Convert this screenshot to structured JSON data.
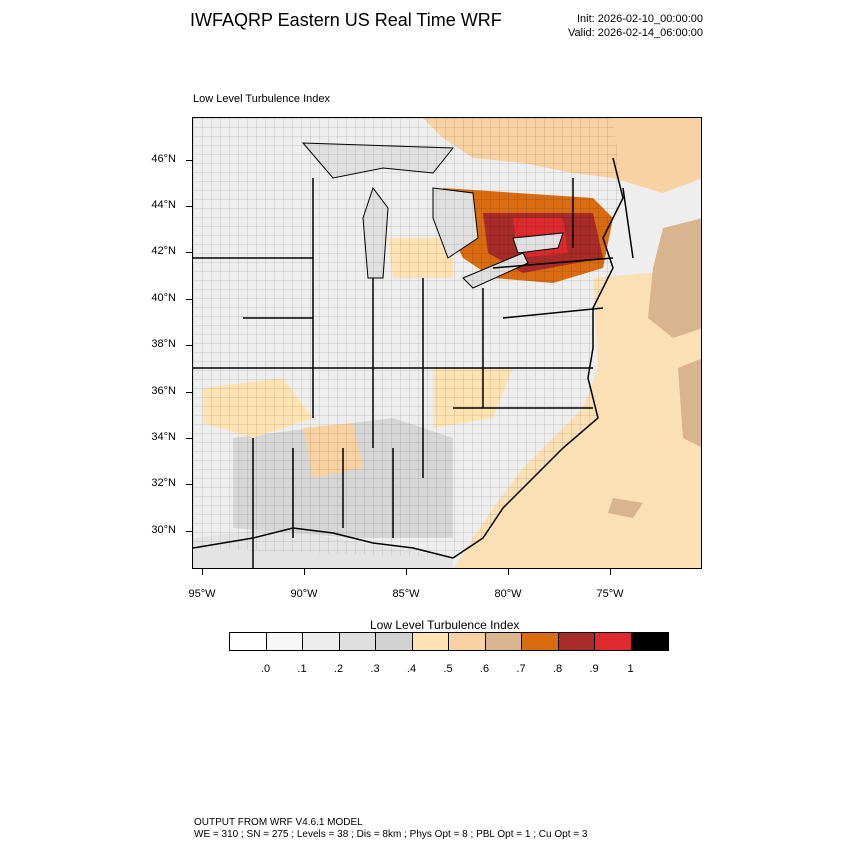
{
  "header": {
    "title": "IWFAQRP Eastern US Real Time WRF",
    "init": "Init: 2026-02-10_00:00:00",
    "valid": "Valid: 2026-02-14_06:00:00"
  },
  "map": {
    "subtitle": "Low Level Turbulence Index",
    "field": "low-level turbulence index",
    "lat_labels": [
      "46°N",
      "44°N",
      "42°N",
      "40°N",
      "38°N",
      "36°N",
      "34°N",
      "32°N",
      "30°N"
    ],
    "lon_labels": [
      "95°W",
      "90°W",
      "85°W",
      "80°W",
      "75°W"
    ],
    "boundaries": [
      "state",
      "county",
      "coastline",
      "lakes"
    ]
  },
  "colorbar": {
    "title": "Low Level Turbulence Index",
    "colors": [
      "#ffffff",
      "#f7f7f7",
      "#ededed",
      "#dedede",
      "#d2d2d2",
      "#ffe3b3",
      "#f8d2a2",
      "#d8b48f",
      "#d96c11",
      "#a62b29",
      "#dd2a2d",
      "#000000"
    ],
    "labels": [
      ".0",
      ".1",
      ".2",
      ".3",
      ".4",
      ".5",
      ".6",
      ".7",
      ".8",
      ".9",
      "1"
    ]
  },
  "footer": {
    "line1": "OUTPUT FROM WRF V4.6.1 MODEL",
    "line2": "WE = 310 ; SN = 275 ; Levels = 38 ; Dis = 8km ; Phys Opt = 8 ; PBL Opt = 1 ; Cu Opt = 3"
  }
}
